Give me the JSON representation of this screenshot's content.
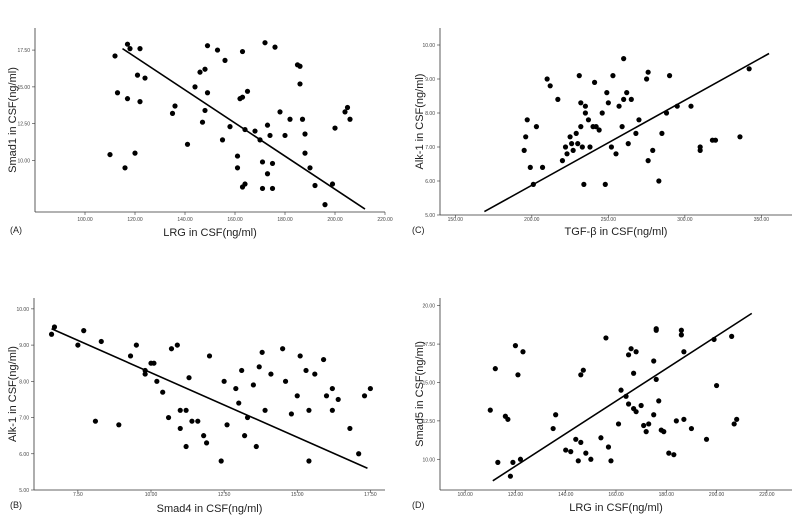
{
  "chart_data": [
    {
      "type": "scatter",
      "panel_label": "(A)",
      "xlabel": "LRG in CSF(ng/ml)",
      "ylabel": "Smad1 in CSF(ng/ml)",
      "xlim": [
        80,
        220
      ],
      "ylim": [
        6.5,
        19.0
      ],
      "xticks": [
        100,
        120,
        140,
        160,
        180,
        200,
        220
      ],
      "xtick_labels": [
        "100.00",
        "120.00",
        "140.00",
        "160.00",
        "180.00",
        "200.00",
        "220.00"
      ],
      "yticks": [
        10,
        12.5,
        15,
        17.5
      ],
      "ytick_labels": [
        "10.00",
        "12.50",
        "15.00",
        "17.50"
      ],
      "points": [
        [
          110,
          10.4
        ],
        [
          112,
          17.1
        ],
        [
          113,
          14.6
        ],
        [
          116,
          9.5
        ],
        [
          117,
          17.9
        ],
        [
          117,
          14.2
        ],
        [
          118,
          17.6
        ],
        [
          120,
          10.5
        ],
        [
          121,
          15.8
        ],
        [
          122,
          14.0
        ],
        [
          122,
          17.6
        ],
        [
          124,
          15.6
        ],
        [
          135,
          13.2
        ],
        [
          136,
          13.7
        ],
        [
          141,
          11.1
        ],
        [
          144,
          15.0
        ],
        [
          146,
          16.0
        ],
        [
          147,
          12.6
        ],
        [
          148,
          16.2
        ],
        [
          148,
          13.4
        ],
        [
          149,
          17.8
        ],
        [
          149,
          14.6
        ],
        [
          153,
          17.5
        ],
        [
          155,
          11.4
        ],
        [
          156,
          16.8
        ],
        [
          158,
          12.3
        ],
        [
          161,
          10.3
        ],
        [
          161,
          9.5
        ],
        [
          162,
          14.2
        ],
        [
          163,
          17.4
        ],
        [
          163,
          14.3
        ],
        [
          163,
          8.2
        ],
        [
          164,
          8.4
        ],
        [
          164,
          12.1
        ],
        [
          165,
          14.7
        ],
        [
          168,
          12.0
        ],
        [
          170,
          11.4
        ],
        [
          171,
          8.1
        ],
        [
          171,
          9.9
        ],
        [
          172,
          18.0
        ],
        [
          173,
          12.4
        ],
        [
          173,
          9.1
        ],
        [
          174,
          11.7
        ],
        [
          175,
          9.8
        ],
        [
          175,
          8.1
        ],
        [
          176,
          17.7
        ],
        [
          178,
          13.3
        ],
        [
          180,
          11.7
        ],
        [
          182,
          12.8
        ],
        [
          185,
          16.5
        ],
        [
          186,
          16.4
        ],
        [
          186,
          15.2
        ],
        [
          187,
          12.8
        ],
        [
          188,
          10.5
        ],
        [
          188,
          11.8
        ],
        [
          190,
          9.5
        ],
        [
          192,
          8.3
        ],
        [
          196,
          7.0
        ],
        [
          199,
          8.4
        ],
        [
          200,
          12.2
        ],
        [
          204,
          13.3
        ],
        [
          205,
          13.6
        ],
        [
          206,
          12.8
        ]
      ],
      "fit_line": [
        [
          115,
          17.6
        ],
        [
          212,
          6.7
        ]
      ]
    },
    {
      "type": "scatter",
      "panel_label": "(C)",
      "xlabel": "TGF-β in CSF(ng/ml)",
      "ylabel": "Alk-1 in CSF(ng/ml)",
      "xlim": [
        140,
        370
      ],
      "ylim": [
        5.0,
        10.5
      ],
      "xticks": [
        150,
        200,
        250,
        300,
        350
      ],
      "xtick_labels": [
        "150.00",
        "200.00",
        "250.00",
        "300.00",
        "350.00"
      ],
      "yticks": [
        5,
        6,
        7,
        8,
        9,
        10
      ],
      "ytick_labels": [
        "5.00",
        "6.00",
        "7.00",
        "8.00",
        "9.00",
        "10.00"
      ],
      "points": [
        [
          195,
          6.9
        ],
        [
          196,
          7.3
        ],
        [
          197,
          7.8
        ],
        [
          199,
          6.4
        ],
        [
          201,
          5.9
        ],
        [
          203,
          7.6
        ],
        [
          207,
          6.4
        ],
        [
          210,
          9.0
        ],
        [
          212,
          8.8
        ],
        [
          217,
          8.4
        ],
        [
          220,
          6.6
        ],
        [
          222,
          7.0
        ],
        [
          223,
          6.8
        ],
        [
          225,
          7.3
        ],
        [
          226,
          7.1
        ],
        [
          227,
          6.9
        ],
        [
          229,
          7.4
        ],
        [
          230,
          7.1
        ],
        [
          231,
          9.1
        ],
        [
          232,
          7.6
        ],
        [
          232,
          8.3
        ],
        [
          233,
          7.0
        ],
        [
          234,
          5.9
        ],
        [
          235,
          8.0
        ],
        [
          235,
          8.2
        ],
        [
          237,
          7.8
        ],
        [
          238,
          7.0
        ],
        [
          240,
          7.6
        ],
        [
          241,
          8.9
        ],
        [
          242,
          7.6
        ],
        [
          244,
          7.5
        ],
        [
          246,
          8.0
        ],
        [
          248,
          5.9
        ],
        [
          249,
          8.6
        ],
        [
          250,
          8.3
        ],
        [
          252,
          7.0
        ],
        [
          253,
          9.1
        ],
        [
          255,
          6.8
        ],
        [
          257,
          8.2
        ],
        [
          259,
          7.6
        ],
        [
          260,
          9.6
        ],
        [
          260,
          8.4
        ],
        [
          262,
          8.6
        ],
        [
          263,
          7.1
        ],
        [
          265,
          8.4
        ],
        [
          268,
          7.4
        ],
        [
          270,
          7.8
        ],
        [
          275,
          9.0
        ],
        [
          276,
          6.6
        ],
        [
          276,
          9.2
        ],
        [
          279,
          6.9
        ],
        [
          283,
          6.0
        ],
        [
          285,
          7.4
        ],
        [
          288,
          8.0
        ],
        [
          290,
          9.1
        ],
        [
          295,
          8.2
        ],
        [
          304,
          8.2
        ],
        [
          310,
          6.9
        ],
        [
          310,
          7.0
        ],
        [
          318,
          7.2
        ],
        [
          320,
          7.2
        ],
        [
          336,
          7.3
        ],
        [
          342,
          9.3
        ]
      ],
      "fit_line": [
        [
          169,
          5.1
        ],
        [
          355,
          9.75
        ]
      ]
    },
    {
      "type": "scatter",
      "panel_label": "(B)",
      "xlabel": "Smad4 in CSF(ng/ml)",
      "ylabel": "Alk-1 in CSF(ng/ml)",
      "xlim": [
        6.0,
        18.0
      ],
      "ylim": [
        5.0,
        10.3
      ],
      "xticks": [
        7.5,
        10,
        12.5,
        15,
        17.5
      ],
      "xtick_labels": [
        "7.50",
        "10.00",
        "12.50",
        "15.00",
        "17.50"
      ],
      "yticks": [
        5,
        6,
        7,
        8,
        9,
        10
      ],
      "ytick_labels": [
        "5.00",
        "6.00",
        "7.00",
        "8.00",
        "9.00",
        "10.00"
      ],
      "points": [
        [
          6.6,
          9.3
        ],
        [
          6.7,
          9.5
        ],
        [
          7.5,
          9.0
        ],
        [
          7.7,
          9.4
        ],
        [
          8.1,
          6.9
        ],
        [
          8.3,
          9.1
        ],
        [
          8.9,
          6.8
        ],
        [
          9.3,
          8.7
        ],
        [
          9.5,
          9.0
        ],
        [
          9.8,
          8.3
        ],
        [
          9.8,
          8.2
        ],
        [
          10.0,
          8.5
        ],
        [
          10.1,
          8.5
        ],
        [
          10.2,
          8.0
        ],
        [
          10.4,
          7.7
        ],
        [
          10.6,
          7.0
        ],
        [
          10.7,
          8.9
        ],
        [
          10.9,
          9.0
        ],
        [
          11.0,
          7.2
        ],
        [
          11.0,
          6.7
        ],
        [
          11.2,
          7.2
        ],
        [
          11.2,
          6.2
        ],
        [
          11.3,
          8.1
        ],
        [
          11.4,
          6.9
        ],
        [
          11.6,
          6.9
        ],
        [
          11.8,
          6.5
        ],
        [
          11.9,
          6.3
        ],
        [
          12.0,
          8.7
        ],
        [
          12.4,
          5.8
        ],
        [
          12.5,
          8.0
        ],
        [
          12.6,
          6.8
        ],
        [
          12.9,
          7.8
        ],
        [
          13.0,
          7.4
        ],
        [
          13.1,
          8.3
        ],
        [
          13.2,
          6.5
        ],
        [
          13.3,
          7.0
        ],
        [
          13.5,
          7.9
        ],
        [
          13.6,
          6.2
        ],
        [
          13.7,
          8.4
        ],
        [
          13.8,
          8.8
        ],
        [
          13.9,
          7.2
        ],
        [
          14.1,
          8.2
        ],
        [
          14.5,
          8.9
        ],
        [
          14.6,
          8.0
        ],
        [
          14.8,
          7.1
        ],
        [
          15.0,
          7.6
        ],
        [
          15.1,
          8.7
        ],
        [
          15.3,
          8.3
        ],
        [
          15.4,
          7.2
        ],
        [
          15.4,
          5.8
        ],
        [
          15.6,
          8.2
        ],
        [
          15.9,
          8.6
        ],
        [
          16.0,
          7.6
        ],
        [
          16.2,
          7.8
        ],
        [
          16.2,
          7.2
        ],
        [
          16.4,
          7.5
        ],
        [
          16.8,
          6.7
        ],
        [
          17.1,
          6.0
        ],
        [
          17.3,
          7.6
        ],
        [
          17.5,
          7.8
        ]
      ],
      "fit_line": [
        [
          6.6,
          9.45
        ],
        [
          17.4,
          5.6
        ]
      ]
    },
    {
      "type": "scatter",
      "panel_label": "(D)",
      "xlabel": "LRG in CSF(ng/ml)",
      "ylabel": "Smad5 in CSF(ng/ml)",
      "xlim": [
        90,
        230
      ],
      "ylim": [
        8.0,
        20.5
      ],
      "xticks": [
        100,
        120,
        140,
        160,
        180,
        200,
        220
      ],
      "xtick_labels": [
        "100.00",
        "120.00",
        "140.00",
        "160.00",
        "180.00",
        "200.00",
        "220.00"
      ],
      "yticks": [
        10,
        12.5,
        15,
        17.5,
        20
      ],
      "ytick_labels": [
        "10.00",
        "12.50",
        "15.00",
        "17.50",
        "20.00"
      ],
      "points": [
        [
          110,
          13.2
        ],
        [
          112,
          15.9
        ],
        [
          113,
          9.8
        ],
        [
          116,
          12.8
        ],
        [
          117,
          12.6
        ],
        [
          118,
          8.9
        ],
        [
          119,
          9.8
        ],
        [
          120,
          17.4
        ],
        [
          121,
          15.5
        ],
        [
          122,
          10.0
        ],
        [
          123,
          17.0
        ],
        [
          135,
          12.0
        ],
        [
          136,
          12.9
        ],
        [
          140,
          10.6
        ],
        [
          142,
          10.5
        ],
        [
          144,
          11.3
        ],
        [
          145,
          9.9
        ],
        [
          146,
          11.1
        ],
        [
          146,
          15.5
        ],
        [
          147,
          15.8
        ],
        [
          148,
          10.4
        ],
        [
          150,
          10.0
        ],
        [
          154,
          11.4
        ],
        [
          156,
          17.9
        ],
        [
          157,
          10.8
        ],
        [
          158,
          9.9
        ],
        [
          161,
          12.3
        ],
        [
          162,
          14.5
        ],
        [
          164,
          14.1
        ],
        [
          165,
          13.6
        ],
        [
          165,
          16.8
        ],
        [
          166,
          17.2
        ],
        [
          167,
          15.6
        ],
        [
          167,
          13.3
        ],
        [
          168,
          17.0
        ],
        [
          168,
          13.1
        ],
        [
          170,
          13.5
        ],
        [
          171,
          12.2
        ],
        [
          172,
          11.8
        ],
        [
          173,
          12.3
        ],
        [
          175,
          16.4
        ],
        [
          175,
          12.9
        ],
        [
          176,
          18.4
        ],
        [
          176,
          18.5
        ],
        [
          176,
          15.2
        ],
        [
          177,
          13.8
        ],
        [
          178,
          11.9
        ],
        [
          179,
          11.8
        ],
        [
          181,
          10.4
        ],
        [
          183,
          10.3
        ],
        [
          184,
          12.5
        ],
        [
          186,
          18.1
        ],
        [
          186,
          18.4
        ],
        [
          187,
          17.0
        ],
        [
          187,
          12.6
        ],
        [
          190,
          12.0
        ],
        [
          196,
          11.3
        ],
        [
          199,
          17.8
        ],
        [
          200,
          14.8
        ],
        [
          206,
          18.0
        ],
        [
          207,
          12.3
        ],
        [
          208,
          12.6
        ]
      ],
      "fit_line": [
        [
          111,
          8.6
        ],
        [
          214,
          19.5
        ]
      ]
    }
  ]
}
